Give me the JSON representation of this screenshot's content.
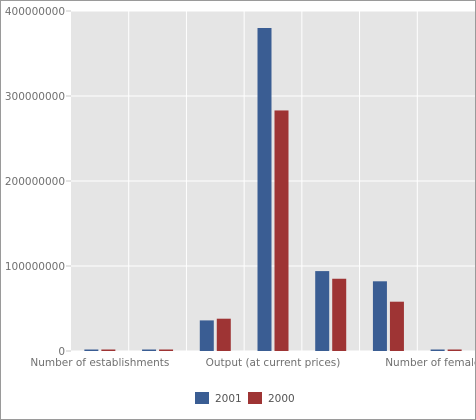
{
  "chart_data": {
    "type": "bar",
    "title": "",
    "xlabel": "",
    "ylabel": "",
    "ylim": [
      0,
      400000000
    ],
    "yticks": [
      0,
      100000000,
      200000000,
      300000000,
      400000000
    ],
    "ytick_labels": [
      "0",
      "100000000",
      "200000000",
      "300000000",
      "400000000"
    ],
    "categories": [
      "",
      "",
      "",
      "",
      "",
      "",
      ""
    ],
    "xtick_labels": [
      {
        "category_index": 0,
        "text": "Number of establishments"
      },
      {
        "category_index": 3,
        "text": "Output (at current prices)"
      },
      {
        "category_index": 6,
        "text": "Number of female emp"
      }
    ],
    "series": [
      {
        "name": "2001",
        "color": "#3a5d93",
        "values": [
          30,
          1200,
          36000000,
          380000000,
          94000000,
          82000000,
          3500
        ]
      },
      {
        "name": "2000",
        "color": "#9e3434",
        "values": [
          30,
          1100,
          38000000,
          283000000,
          85000000,
          58000000,
          3300
        ]
      }
    ],
    "grid": true,
    "legend_position": "bottom-center"
  }
}
